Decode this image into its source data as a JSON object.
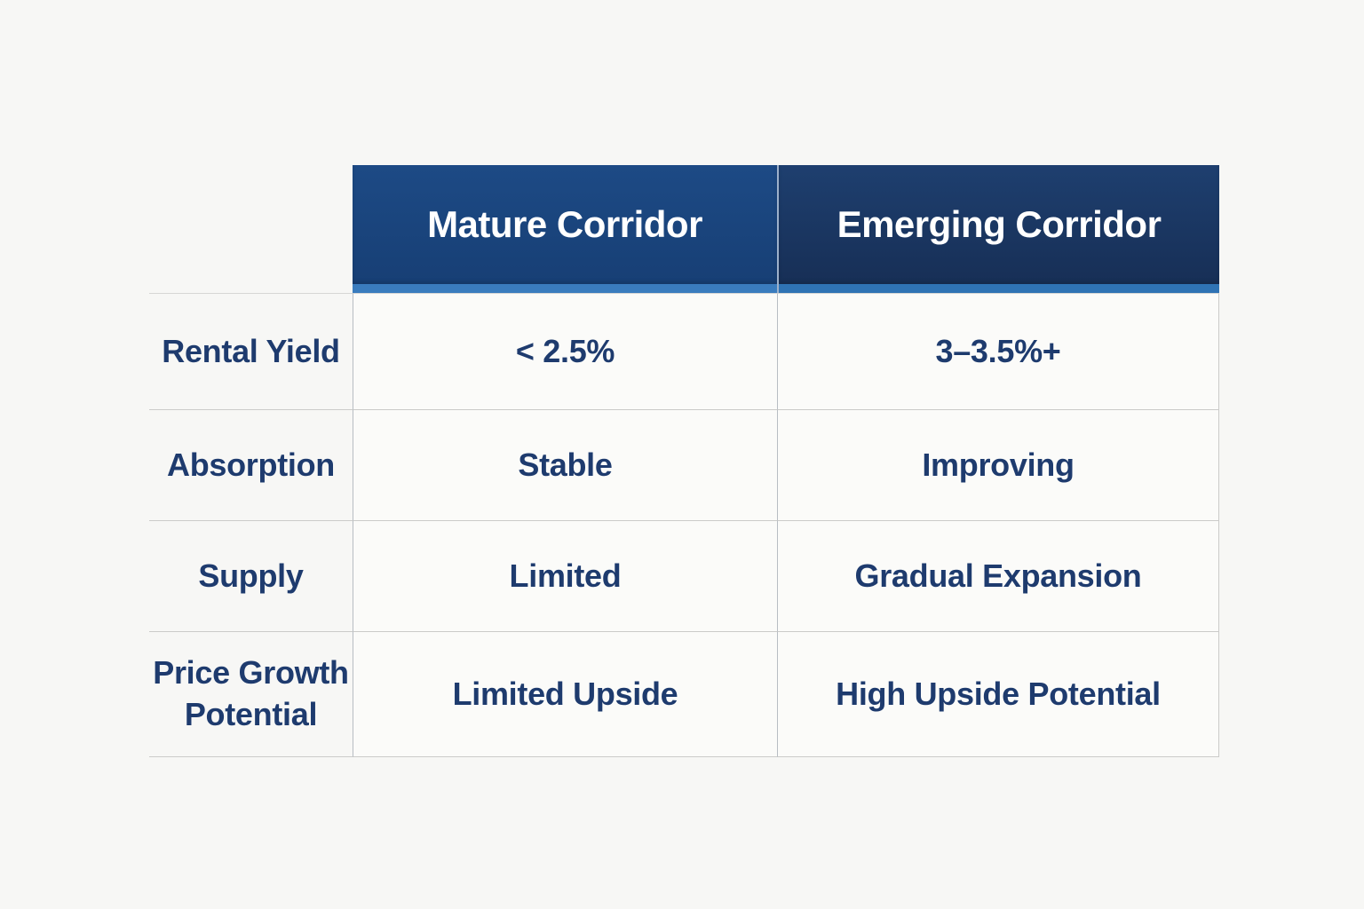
{
  "table": {
    "columns": [
      {
        "label": "Mature Corridor"
      },
      {
        "label": "Emerging Corridor"
      }
    ],
    "rows": [
      {
        "label": "Rental Yield",
        "mature": "< 2.5%",
        "emerging": "3–3.5%+"
      },
      {
        "label": "Absorption",
        "mature": "Stable",
        "emerging": "Improving"
      },
      {
        "label": "Supply",
        "mature": "Limited",
        "emerging": "Gradual Expansion"
      },
      {
        "label": "Price Growth Potential",
        "mature": "Limited Upside",
        "emerging": "High Upside Potential"
      }
    ]
  },
  "chart_data": {
    "type": "table",
    "title": "Mature Corridor vs Emerging Corridor comparison",
    "columns": [
      "",
      "Mature Corridor",
      "Emerging Corridor"
    ],
    "rows": [
      [
        "Rental Yield",
        "< 2.5%",
        "3–3.5%+"
      ],
      [
        "Absorption",
        "Stable",
        "Improving"
      ],
      [
        "Supply",
        "Limited",
        "Gradual Expansion"
      ],
      [
        "Price Growth Potential",
        "Limited Upside",
        "High Upside Potential"
      ]
    ]
  },
  "theme": {
    "header-left-bg": "#1d4a85",
    "header-left-bg2": "#173f75",
    "header-right-bg": "#1e3f6f",
    "header-right-bg2": "#172f56",
    "accent-left": "#3a7cbe",
    "accent-right": "#2f73b4",
    "header-text": "#ffffff",
    "body-text": "#1e3b6e",
    "page-bg": "#f7f7f5",
    "cell-bg": "#fbfbf9",
    "line-h": "#cbcbc9",
    "line-v": "#b8bdc3",
    "header-divider": "#9db1cb"
  }
}
